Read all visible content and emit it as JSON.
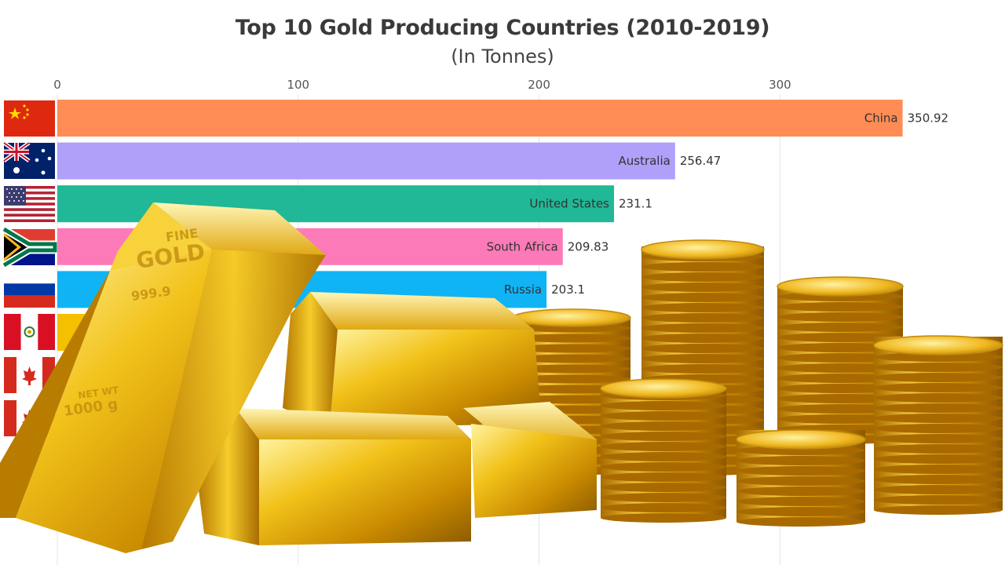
{
  "chart_data": {
    "type": "bar",
    "orientation": "horizontal",
    "title": "Top 10 Gold Producing Countries (2010-2019)",
    "subtitle": "(In Tonnes)",
    "xlim": [
      0,
      370
    ],
    "x_ticks": [
      0,
      100,
      200,
      300
    ],
    "grid": true,
    "categories": [
      "China",
      "Australia",
      "United States",
      "South Africa",
      "Russia"
    ],
    "values": [
      350.92,
      256.47,
      231.1,
      209.83,
      203.1
    ],
    "value_labels": [
      "350.92",
      "256.47",
      "231.1",
      "209.83",
      "203.1"
    ],
    "colors": [
      "#ff8c55",
      "#b0a0fa",
      "#20b896",
      "#fc7ab8",
      "#10b4f5"
    ],
    "partially_hidden_bar_colors": [
      "#f5c000"
    ],
    "flags": [
      "china-flag-icon",
      "australia-flag-icon",
      "united-states-flag-icon",
      "south-africa-flag-icon",
      "russia-flag-icon",
      "peru-flag-icon",
      "canada-flag-icon",
      "canada-flag-icon"
    ]
  },
  "overlay": {
    "image": "gold-bars-and-coins",
    "bar_stamp": {
      "line1": "FINE",
      "line2": "GOLD",
      "line3": "999.9",
      "line4": "NET WT",
      "line5": "1000 g"
    }
  }
}
